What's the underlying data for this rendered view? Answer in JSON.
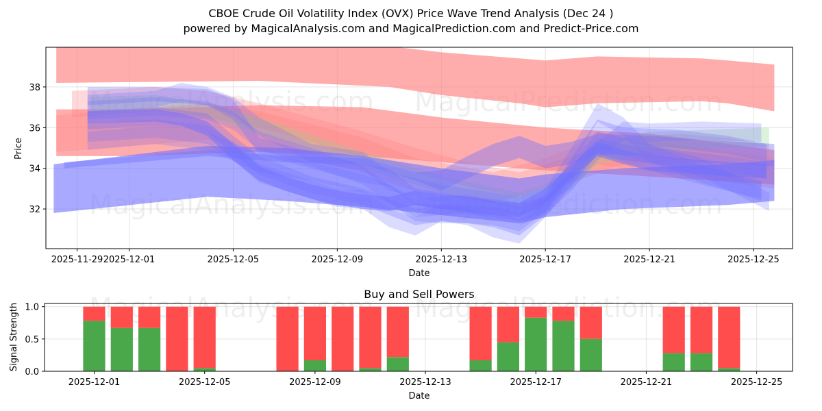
{
  "chart_data": [
    {
      "type": "area",
      "title": "CBOE Crude Oil Volatility Index (OVX) Price Wave Trend Analysis (Dec 24 )",
      "subtitle": "powered by MagicalAnalysis.com and MagicalPrediction.com and Predict-Price.com",
      "xlabel": "Date",
      "ylabel": "Price",
      "x_ticks": [
        "2025-11-29",
        "2025-12-01",
        "2025-12-05",
        "2025-12-09",
        "2025-12-13",
        "2025-12-17",
        "2025-12-21",
        "2025-12-25"
      ],
      "y_ticks": [
        "32",
        "34",
        "36",
        "38"
      ],
      "xlim_days": [
        -3.2,
        25.5
      ],
      "ylim": [
        30.05,
        39.95
      ],
      "grid": true,
      "watermarks": [
        "MagicalAnalysis.com",
        "MagicalPrediction.com"
      ],
      "colors": {
        "red": "#ff8080",
        "blue": "#7070ff",
        "green": "#90d090"
      },
      "bands": [
        {
          "color": "red",
          "opacity": 0.65,
          "x": [
            -2.8,
            5,
            10,
            12,
            15,
            16,
            18,
            22,
            23,
            24.8
          ],
          "upper": [
            40,
            40,
            40,
            39.7,
            39.4,
            39.3,
            39.5,
            39.4,
            39.3,
            39.1
          ],
          "lower": [
            38.2,
            38.3,
            38,
            37.6,
            37.2,
            37,
            37.2,
            37.3,
            37.2,
            36.8
          ]
        },
        {
          "color": "red",
          "opacity": 0.65,
          "x": [
            -2.8,
            0,
            5,
            9,
            12,
            16,
            20,
            24.8
          ],
          "upper": [
            36.9,
            36.9,
            37.1,
            37,
            36.5,
            36,
            35.7,
            34.9
          ],
          "lower": [
            34.6,
            34.6,
            34.8,
            34.6,
            34.3,
            33.9,
            33.6,
            33.2
          ]
        },
        {
          "color": "red",
          "opacity": 0.3,
          "x": [
            -2.8,
            3,
            5,
            9,
            10,
            11,
            14,
            16,
            17,
            18,
            19,
            21,
            24.8
          ],
          "upper": [
            36.6,
            37.2,
            36.8,
            35.5,
            35,
            34.5,
            33.8,
            34.5,
            35,
            35.8,
            35.5,
            35.2,
            34.5
          ],
          "lower": [
            34.8,
            35.4,
            34.9,
            33.8,
            33.3,
            32.9,
            32.3,
            33,
            33.5,
            34.2,
            34,
            33.7,
            33
          ]
        },
        {
          "color": "red",
          "opacity": 0.3,
          "x": [
            -2.2,
            1,
            3,
            5,
            7,
            9,
            11,
            13,
            15,
            17,
            19,
            21,
            23,
            24.6
          ],
          "upper": [
            37.8,
            38,
            37.8,
            37.2,
            36.5,
            35.8,
            35,
            34.3,
            33.8,
            34.6,
            35.5,
            35.7,
            35.5,
            35.1
          ],
          "lower": [
            36.5,
            36.8,
            36.5,
            36,
            35.3,
            34.5,
            33.8,
            33.1,
            32.6,
            33.3,
            34.2,
            34.3,
            34.2,
            33.8
          ]
        },
        {
          "color": "green",
          "opacity": 0.3,
          "x": [
            -1.5,
            1,
            3,
            5,
            9,
            12,
            15,
            16,
            17,
            18,
            20,
            24.6
          ],
          "upper": [
            37.5,
            37.6,
            37.2,
            36.5,
            34.8,
            33.6,
            32.8,
            33.2,
            34,
            35.2,
            35.8,
            36
          ],
          "lower": [
            36.6,
            36.9,
            36.5,
            35.7,
            34,
            32.8,
            32,
            32.3,
            33,
            34.2,
            34.8,
            35.1
          ]
        },
        {
          "color": "blue",
          "opacity": 0.6,
          "x": [
            -2.9,
            3,
            6,
            9,
            12,
            15,
            16,
            19,
            23,
            24.8
          ],
          "upper": [
            34.2,
            35.1,
            35,
            34.6,
            34,
            33.5,
            33.7,
            34,
            34.2,
            34.4
          ],
          "lower": [
            31.8,
            32.6,
            32.4,
            32.1,
            31.7,
            31.3,
            31.6,
            32,
            32.2,
            32.4
          ]
        },
        {
          "color": "blue",
          "opacity": 0.3,
          "x": [
            -1.6,
            1,
            3,
            4,
            5,
            7,
            9,
            10,
            11,
            12,
            13,
            14,
            15,
            16,
            17,
            18,
            19,
            21,
            23,
            24.5
          ],
          "upper": [
            38,
            38,
            37.9,
            37.4,
            35.5,
            34.8,
            34.2,
            34,
            33,
            32.8,
            32.6,
            32.5,
            32.3,
            32.6,
            34.5,
            36.4,
            36,
            35.9,
            35.6,
            35.2
          ],
          "lower": [
            37.1,
            37.3,
            37.1,
            36.4,
            34.7,
            34,
            33.3,
            33.1,
            32.2,
            32,
            31.8,
            31.6,
            31.4,
            31.8,
            33.7,
            35.6,
            35.2,
            35,
            34.7,
            34.3
          ]
        },
        {
          "color": "blue",
          "opacity": 0.3,
          "x": [
            -1.6,
            1,
            3,
            4,
            5,
            7,
            9,
            10,
            11,
            12,
            13,
            14,
            15,
            16,
            17,
            18,
            19,
            21,
            23,
            24.5
          ],
          "upper": [
            36.8,
            37,
            36.7,
            35.6,
            34.6,
            33.6,
            33,
            32.5,
            32,
            32.2,
            32.1,
            31.9,
            31.5,
            32.5,
            34,
            35.5,
            35.2,
            34.9,
            34.6,
            34.3
          ],
          "lower": [
            35.9,
            36.1,
            35.8,
            34.7,
            33.7,
            32.8,
            32.2,
            31.7,
            31.2,
            31.4,
            31.3,
            31.1,
            30.7,
            31.7,
            33.2,
            34.7,
            34.4,
            34.1,
            33.8,
            33.5
          ]
        },
        {
          "color": "blue",
          "opacity": 0.25,
          "x": [
            -1.6,
            1,
            2,
            3,
            4,
            5,
            7,
            9,
            10,
            11,
            12,
            13,
            14,
            15,
            16,
            17,
            18,
            19,
            20,
            22,
            24.6
          ],
          "upper": [
            37.6,
            37.8,
            38.2,
            38,
            37.5,
            36.5,
            35.2,
            34.8,
            33.8,
            33.5,
            33.2,
            33,
            32.8,
            32.6,
            33,
            35,
            37.2,
            36.5,
            35.2,
            34.5,
            32.8
          ],
          "lower": [
            36.7,
            37,
            37.3,
            37.1,
            36.6,
            35.6,
            34.3,
            33.9,
            32.9,
            32.6,
            32.3,
            32.1,
            31.9,
            31.7,
            32.1,
            34.1,
            36.3,
            35.6,
            34.3,
            33.6,
            31.9
          ]
        },
        {
          "color": "blue",
          "opacity": 0.25,
          "x": [
            -1.6,
            1,
            3,
            4,
            5,
            7,
            8,
            9,
            10,
            11,
            12,
            13,
            14,
            15,
            16,
            17,
            18,
            19,
            20,
            22,
            24.3
          ],
          "upper": [
            36.2,
            36.4,
            36.1,
            35.3,
            34.2,
            33.4,
            33,
            32.9,
            32,
            31.6,
            32.3,
            32.1,
            31.5,
            31.2,
            32.5,
            34,
            35.6,
            35.2,
            34.8,
            34.1,
            33.4
          ],
          "lower": [
            35.3,
            35.5,
            35.2,
            34.4,
            33.3,
            32.5,
            32.1,
            32,
            31.1,
            30.7,
            31.4,
            31.2,
            30.6,
            30.3,
            31.6,
            33.1,
            34.7,
            34.3,
            33.9,
            33.2,
            32.5
          ]
        },
        {
          "color": "blue",
          "opacity": 0.25,
          "x": [
            -1.6,
            1,
            3,
            5,
            7,
            9,
            10,
            11,
            12,
            13,
            14,
            15,
            16,
            17,
            18,
            19,
            20,
            22,
            24.3
          ],
          "upper": [
            35.8,
            36.1,
            35.8,
            34.7,
            34.3,
            33.7,
            33.2,
            32.5,
            32.6,
            32.7,
            32.4,
            32.1,
            32.6,
            33.8,
            35.3,
            36.3,
            36.2,
            36.3,
            36.2
          ],
          "lower": [
            34.9,
            35.2,
            34.9,
            33.8,
            33.4,
            32.8,
            32.3,
            31.6,
            31.7,
            31.8,
            31.5,
            31.2,
            31.7,
            32.9,
            34.4,
            35.4,
            35.3,
            35.4,
            35.3
          ]
        },
        {
          "color": "blue",
          "opacity": 0.25,
          "x": [
            -1.6,
            1,
            3,
            4,
            5,
            7,
            9,
            10,
            11,
            12,
            13,
            14,
            15,
            16,
            17,
            18,
            19,
            20,
            22,
            24.3
          ],
          "upper": [
            37.3,
            37.5,
            37.3,
            36.8,
            35.8,
            35,
            34.1,
            33.2,
            32.3,
            32.2,
            32.2,
            32.1,
            31.8,
            32.8,
            34.3,
            35.8,
            35.5,
            35.2,
            34.2,
            33.3
          ],
          "lower": [
            36.4,
            36.6,
            36.4,
            35.9,
            34.9,
            34.1,
            33.2,
            32.3,
            31.4,
            31.3,
            31.3,
            31.2,
            30.9,
            31.9,
            33.4,
            34.9,
            34.6,
            34.3,
            33.3,
            32.4
          ]
        },
        {
          "color": "blue",
          "opacity": 0.5,
          "x": [
            -1.6,
            1,
            2,
            3,
            4,
            5,
            6,
            7,
            8,
            9,
            10,
            11,
            12,
            13,
            14,
            15,
            16,
            17,
            18,
            19,
            20,
            21,
            22,
            23,
            24.5
          ],
          "upper": [
            36.8,
            36.9,
            36.7,
            36.3,
            35.2,
            34.1,
            33.6,
            33.2,
            32.9,
            32.7,
            32.6,
            32.9,
            32.7,
            32.6,
            32.4,
            32.3,
            33,
            34.2,
            35.3,
            34.9,
            34.6,
            34.5,
            34.4,
            34.3,
            34.2
          ],
          "lower": [
            36.2,
            36.3,
            36.1,
            35.6,
            34.4,
            33.4,
            32.9,
            32.5,
            32.2,
            32,
            31.9,
            32.2,
            32,
            31.9,
            31.7,
            31.6,
            32.3,
            33.5,
            34.6,
            34.2,
            33.9,
            33.8,
            33.7,
            33.6,
            33.5
          ]
        },
        {
          "color": "blue",
          "opacity": 0.4,
          "x": [
            -2.5,
            3,
            6,
            9,
            11,
            12,
            13,
            14,
            15,
            16,
            17,
            18,
            20,
            22,
            24.8
          ],
          "upper": [
            34.3,
            34.9,
            34.6,
            34.5,
            33.8,
            33.9,
            34.6,
            35.2,
            35.6,
            35.1,
            35.3,
            35.7,
            35.6,
            35.4,
            35.2
          ],
          "lower": [
            34,
            34.6,
            34.3,
            34.2,
            33.4,
            32.9,
            33.5,
            34.1,
            34.5,
            34,
            34.2,
            34.7,
            34.6,
            34.3,
            34.1
          ]
        }
      ]
    },
    {
      "type": "bar",
      "title": "Buy and Sell Powers",
      "xlabel": "Date",
      "ylabel": "Signal Strength",
      "x_ticks": [
        "2025-12-01",
        "2025-12-05",
        "2025-12-09",
        "2025-12-13",
        "2025-12-17",
        "2025-12-21",
        "2025-12-25"
      ],
      "y_ticks": [
        "0.0",
        "0.5",
        "1.0"
      ],
      "ylim": [
        0,
        1.05
      ],
      "xlim_days": [
        -1.8,
        25.3
      ],
      "grid": true,
      "colors": {
        "buy": "#4aa84a",
        "sell": "#ff4c4c"
      },
      "series": [
        {
          "name": "Buy",
          "day_offsets": [
            0,
            1,
            2,
            3,
            4,
            7,
            8,
            9,
            10,
            11,
            14,
            15,
            16,
            17,
            18,
            21,
            22,
            23
          ],
          "values": [
            0.78,
            0.67,
            0.67,
            0.0,
            0.05,
            0.0,
            0.17,
            0.0,
            0.05,
            0.22,
            0.17,
            0.45,
            0.83,
            0.78,
            0.5,
            0.28,
            0.28,
            0.05
          ]
        },
        {
          "name": "Sell",
          "day_offsets": [
            0,
            1,
            2,
            3,
            4,
            7,
            8,
            9,
            10,
            11,
            14,
            15,
            16,
            17,
            18,
            21,
            22,
            23
          ],
          "values": [
            0.22,
            0.33,
            0.33,
            1.0,
            0.95,
            1.0,
            0.83,
            1.0,
            0.95,
            0.78,
            0.83,
            0.55,
            0.17,
            0.22,
            0.5,
            0.72,
            0.72,
            0.95
          ]
        }
      ]
    }
  ]
}
